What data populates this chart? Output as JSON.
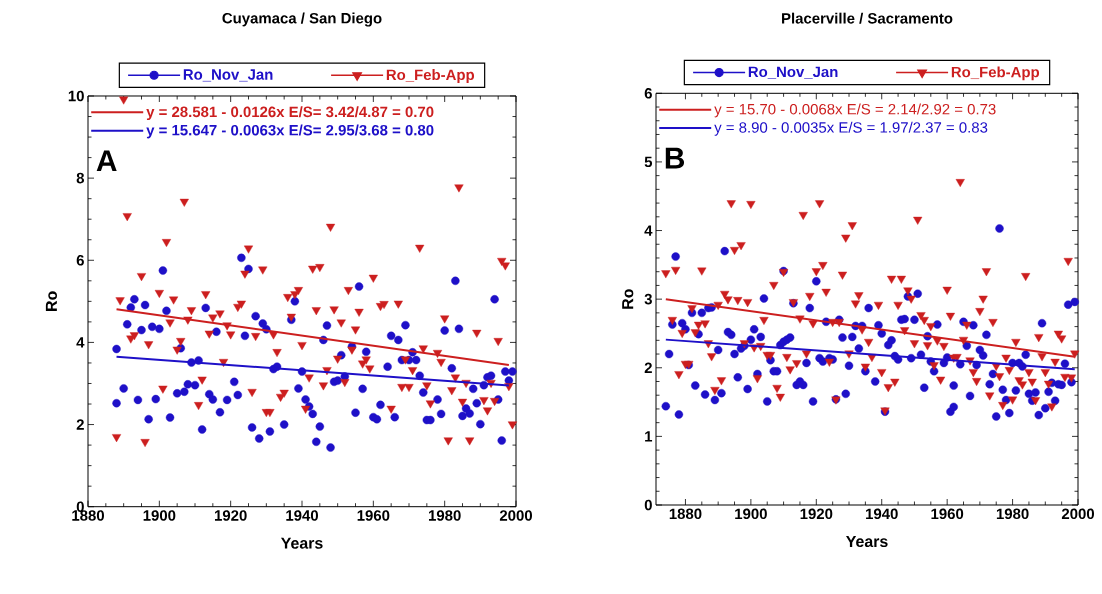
{
  "chart_data": [
    {
      "type": "scatter",
      "title": "Cuyamaca / San Diego",
      "xlabel": "Years",
      "ylabel": "Ro",
      "xlim": [
        1880,
        2000
      ],
      "ylim": [
        0,
        10
      ],
      "xticks": [
        1880,
        1900,
        1920,
        1940,
        1960,
        1980,
        2000
      ],
      "yticks": [
        0,
        2,
        4,
        6,
        8,
        10
      ],
      "legend": "top",
      "annotations": [
        "A"
      ],
      "series": [
        {
          "name": "Ro_Nov_Jan",
          "color": "#1e10c8",
          "marker": "circle",
          "x": [
            1888,
            1888,
            1890,
            1891,
            1892,
            1893,
            1894,
            1895,
            1896,
            1897,
            1898,
            1899,
            1900,
            1901,
            1902,
            1903,
            1905,
            1906,
            1907,
            1908,
            1909,
            1910,
            1911,
            1912,
            1913,
            1914,
            1915,
            1916,
            1917,
            1919,
            1921,
            1922,
            1923,
            1924,
            1925,
            1926,
            1927,
            1928,
            1929,
            1930,
            1931,
            1932,
            1933,
            1935,
            1937,
            1938,
            1939,
            1940,
            1941,
            1942,
            1943,
            1944,
            1945,
            1946,
            1947,
            1948,
            1949,
            1950,
            1951,
            1952,
            1954,
            1955,
            1956,
            1957,
            1958,
            1960,
            1961,
            1962,
            1964,
            1965,
            1966,
            1967,
            1968,
            1969,
            1970,
            1971,
            1972,
            1973,
            1974,
            1975,
            1976,
            1978,
            1979,
            1980,
            1982,
            1983,
            1984,
            1985,
            1986,
            1987,
            1988,
            1989,
            1990,
            1991,
            1992,
            1993,
            1994,
            1995,
            1996,
            1997,
            1998,
            1999
          ],
          "values": [
            3.84,
            2.52,
            2.88,
            4.44,
            4.85,
            5.05,
            2.6,
            4.3,
            4.91,
            2.13,
            4.38,
            2.62,
            4.33,
            5.75,
            4.77,
            2.17,
            2.76,
            3.86,
            2.8,
            2.98,
            3.51,
            2.96,
            3.56,
            1.88,
            4.84,
            2.74,
            2.61,
            4.26,
            2.3,
            2.6,
            3.04,
            2.72,
            6.06,
            4.16,
            5.79,
            1.93,
            4.64,
            1.66,
            4.46,
            4.32,
            1.83,
            3.35,
            3.41,
            2.0,
            4.55,
            5.0,
            2.88,
            3.29,
            2.61,
            2.44,
            2.26,
            1.58,
            1.95,
            4.06,
            4.41,
            1.44,
            3.04,
            3.07,
            3.69,
            3.17,
            3.9,
            2.29,
            5.36,
            2.87,
            3.77,
            2.18,
            2.13,
            2.48,
            3.41,
            4.16,
            2.18,
            4.06,
            3.57,
            4.42,
            3.57,
            3.76,
            3.57,
            3.19,
            2.78,
            2.11,
            2.11,
            2.61,
            2.26,
            4.29,
            3.37,
            5.5,
            4.33,
            2.21,
            2.39,
            2.27,
            2.87,
            2.52,
            2.01,
            2.96,
            3.15,
            3.19,
            5.05,
            2.61,
            1.61,
            3.29,
            3.07,
            3.29
          ]
        },
        {
          "name": "Ro_Feb-App",
          "color": "#cc1f1f",
          "marker": "triangle",
          "x": [
            1888,
            1889,
            1890,
            1891,
            1892,
            1893,
            1895,
            1896,
            1897,
            1900,
            1901,
            1902,
            1903,
            1904,
            1905,
            1906,
            1907,
            1908,
            1909,
            1911,
            1912,
            1913,
            1914,
            1915,
            1917,
            1918,
            1919,
            1920,
            1922,
            1923,
            1924,
            1925,
            1926,
            1927,
            1929,
            1930,
            1931,
            1932,
            1933,
            1934,
            1935,
            1936,
            1937,
            1938,
            1939,
            1940,
            1941,
            1942,
            1943,
            1944,
            1945,
            1946,
            1947,
            1948,
            1949,
            1950,
            1951,
            1952,
            1953,
            1954,
            1955,
            1956,
            1957,
            1958,
            1959,
            1960,
            1962,
            1963,
            1965,
            1967,
            1968,
            1969,
            1970,
            1971,
            1973,
            1974,
            1975,
            1976,
            1978,
            1979,
            1980,
            1981,
            1982,
            1983,
            1984,
            1985,
            1986,
            1987,
            1989,
            1991,
            1992,
            1993,
            1994,
            1995,
            1996,
            1997,
            1998,
            1999
          ],
          "values": [
            1.7,
            5.03,
            9.92,
            7.08,
            4.1,
            4.18,
            5.62,
            1.58,
            3.96,
            5.21,
            2.88,
            6.45,
            4.49,
            5.05,
            3.83,
            4.04,
            7.43,
            4.56,
            4.79,
            2.48,
            3.1,
            5.18,
            4.22,
            4.61,
            4.71,
            3.53,
            4.42,
            4.2,
            4.87,
            4.95,
            5.68,
            6.29,
            2.8,
            4.16,
            5.78,
            2.31,
            2.31,
            4.2,
            3.77,
            2.68,
            2.78,
            5.11,
            4.63,
            5.18,
            5.28,
            3.94,
            2.39,
            3.15,
            5.8,
            4.79,
            5.84,
            2.96,
            3.33,
            6.82,
            4.81,
            3.61,
            4.49,
            3.04,
            5.28,
            3.83,
            4.32,
            4.75,
            3.49,
            3.59,
            3.37,
            5.58,
            4.89,
            4.94,
            2.39,
            4.95,
            2.92,
            3.59,
            2.92,
            3.33,
            6.31,
            3.86,
            2.96,
            2.52,
            3.75,
            3.53,
            4.59,
            1.62,
            2.84,
            3.15,
            7.78,
            2.56,
            3.02,
            1.62,
            4.24,
            2.6,
            2.35,
            3.02,
            2.58,
            4.04,
            5.99,
            5.88,
            2.94,
            2.01
          ]
        },
        {
          "name": "y = 28.581 - 0.0126x   E/S= 3.42/4.87 = 0.70",
          "type": "line",
          "color": "#cc1f1f",
          "marker": "none",
          "x": [
            1888,
            1998
          ],
          "values": [
            4.81,
            3.45
          ]
        },
        {
          "name": "y = 15.647 - 0.0063x  E/S= 2.95/3.68 = 0.80",
          "type": "line",
          "color": "#1e10c8",
          "marker": "none",
          "x": [
            1888,
            1998
          ],
          "values": [
            3.65,
            2.95
          ]
        }
      ]
    },
    {
      "type": "scatter",
      "title": "Placerville /  Sacramento",
      "xlabel": "Years",
      "ylabel": "Ro",
      "xlim": [
        1871,
        2000
      ],
      "ylim": [
        0,
        6
      ],
      "xticks": [
        1880,
        1900,
        1920,
        1940,
        1960,
        1980,
        2000
      ],
      "yticks": [
        0,
        1,
        2,
        3,
        4,
        5,
        6
      ],
      "legend": "top",
      "annotations": [
        "B"
      ],
      "series": [
        {
          "name": "Ro_Nov_Jan",
          "color": "#1e10c8",
          "marker": "circle",
          "x": [
            1874,
            1875,
            1876,
            1877,
            1878,
            1879,
            1880,
            1881,
            1882,
            1883,
            1884,
            1885,
            1886,
            1887,
            1888,
            1889,
            1890,
            1891,
            1892,
            1893,
            1894,
            1895,
            1896,
            1897,
            1898,
            1899,
            1900,
            1901,
            1902,
            1903,
            1904,
            1905,
            1906,
            1907,
            1908,
            1909,
            1910,
            1910,
            1911,
            1912,
            1913,
            1914,
            1915,
            1916,
            1917,
            1918,
            1919,
            1920,
            1921,
            1922,
            1923,
            1924,
            1925,
            1926,
            1927,
            1928,
            1929,
            1930,
            1931,
            1932,
            1933,
            1934,
            1935,
            1936,
            1938,
            1939,
            1940,
            1941,
            1942,
            1943,
            1944,
            1945,
            1946,
            1947,
            1948,
            1949,
            1950,
            1951,
            1952,
            1953,
            1954,
            1955,
            1956,
            1957,
            1959,
            1960,
            1961,
            1962,
            1962,
            1964,
            1965,
            1966,
            1967,
            1968,
            1969,
            1970,
            1971,
            1972,
            1973,
            1974,
            1975,
            1976,
            1977,
            1978,
            1979,
            1980,
            1981,
            1982,
            1983,
            1984,
            1985,
            1986,
            1987,
            1988,
            1989,
            1990,
            1991,
            1992,
            1993,
            1994,
            1995,
            1996,
            1997,
            1998,
            1999
          ],
          "values": [
            1.44,
            2.2,
            2.63,
            3.62,
            1.32,
            2.65,
            2.56,
            2.04,
            2.8,
            1.74,
            2.49,
            2.8,
            1.61,
            2.87,
            2.88,
            1.53,
            2.26,
            1.63,
            3.7,
            2.52,
            2.48,
            2.2,
            1.86,
            2.28,
            2.32,
            1.69,
            2.41,
            2.56,
            1.91,
            2.45,
            3.01,
            1.51,
            2.11,
            1.95,
            1.95,
            2.33,
            2.38,
            3.41,
            2.41,
            2.44,
            2.94,
            1.75,
            1.8,
            1.75,
            2.07,
            2.87,
            1.51,
            3.26,
            2.14,
            2.09,
            2.67,
            2.14,
            2.12,
            1.54,
            2.7,
            2.44,
            1.62,
            2.03,
            2.45,
            2.61,
            2.28,
            2.61,
            1.95,
            2.87,
            1.8,
            2.62,
            2.5,
            1.36,
            2.33,
            2.4,
            2.17,
            2.12,
            2.7,
            2.71,
            3.04,
            2.14,
            2.7,
            3.08,
            2.19,
            1.71,
            2.46,
            2.09,
            1.95,
            2.63,
            2.07,
            2.15,
            1.36,
            1.74,
            1.43,
            2.05,
            2.67,
            2.32,
            1.59,
            2.62,
            2.04,
            2.26,
            2.18,
            2.48,
            1.76,
            1.91,
            1.29,
            4.03,
            1.68,
            1.53,
            1.34,
            2.07,
            1.67,
            2.07,
            2.02,
            2.19,
            1.62,
            1.52,
            1.64,
            1.31,
            2.65,
            1.41,
            1.65,
            1.78,
            1.52,
            1.76,
            1.75,
            2.06,
            2.92,
            1.79,
            2.96
          ]
        },
        {
          "name": "Ro_Feb-App",
          "color": "#cc1f1f",
          "marker": "triangle",
          "x": [
            1874,
            1876,
            1877,
            1878,
            1879,
            1880,
            1881,
            1882,
            1883,
            1884,
            1885,
            1886,
            1887,
            1888,
            1889,
            1890,
            1891,
            1892,
            1893,
            1894,
            1895,
            1896,
            1897,
            1898,
            1899,
            1900,
            1901,
            1902,
            1903,
            1904,
            1905,
            1906,
            1907,
            1908,
            1909,
            1910,
            1911,
            1912,
            1913,
            1914,
            1915,
            1916,
            1917,
            1918,
            1919,
            1920,
            1921,
            1922,
            1923,
            1924,
            1925,
            1926,
            1927,
            1928,
            1929,
            1930,
            1931,
            1932,
            1933,
            1934,
            1935,
            1936,
            1937,
            1939,
            1940,
            1941,
            1942,
            1943,
            1944,
            1945,
            1946,
            1947,
            1948,
            1949,
            1950,
            1951,
            1952,
            1953,
            1954,
            1955,
            1956,
            1957,
            1958,
            1959,
            1960,
            1961,
            1962,
            1963,
            1964,
            1965,
            1966,
            1967,
            1968,
            1969,
            1970,
            1971,
            1972,
            1973,
            1974,
            1975,
            1976,
            1977,
            1978,
            1979,
            1980,
            1981,
            1982,
            1983,
            1984,
            1985,
            1986,
            1987,
            1988,
            1989,
            1990,
            1991,
            1992,
            1993,
            1994,
            1995,
            1996,
            1997,
            1998,
            1999
          ],
          "values": [
            3.38,
            2.7,
            3.43,
            1.91,
            2.51,
            2.06,
            2.06,
            2.87,
            2.52,
            2.63,
            3.42,
            2.65,
            2.36,
            2.17,
            1.68,
            2.92,
            1.82,
            3.08,
            3.0,
            4.4,
            3.72,
            2.99,
            3.79,
            2.36,
            2.96,
            4.39,
            2.3,
            1.85,
            2.32,
            2.7,
            2.19,
            2.19,
            3.21,
            1.71,
            1.58,
            3.4,
            2.16,
            1.98,
            2.96,
            2.07,
            2.72,
            4.23,
            2.21,
            3.05,
            2.65,
            3.41,
            4.4,
            3.5,
            3.11,
            2.09,
            2.67,
            1.54,
            2.67,
            3.36,
            3.9,
            2.21,
            4.08,
            2.94,
            3.06,
            2.56,
            2.02,
            2.38,
            2.16,
            2.92,
            1.94,
            1.38,
            1.72,
            3.3,
            1.8,
            2.92,
            3.3,
            2.55,
            3.13,
            3.01,
            2.36,
            4.16,
            2.77,
            2.7,
            2.33,
            2.61,
            2.04,
            2.4,
            1.83,
            2.32,
            3.14,
            2.76,
            2.15,
            2.16,
            4.71,
            2.41,
            2.63,
            2.11,
            1.94,
            1.81,
            2.83,
            3.01,
            3.41,
            1.6,
            2.67,
            2.03,
            1.88,
            1.46,
            2.15,
            1.97,
            1.54,
            2.38,
            1.82,
            1.76,
            3.34,
            1.94,
            1.8,
            1.53,
            2.45,
            2.17,
            1.94,
            1.77,
            1.44,
            2.09,
            2.5,
            2.43,
            1.87,
            3.56,
            1.86,
            2.21
          ]
        },
        {
          "name": "y = 15.70 - 0.0068x   E/S = 2.14/2.92 = 0.73",
          "type": "line",
          "color": "#cc1f1f",
          "marker": "none",
          "x": [
            1874,
            1999
          ],
          "values": [
            3.0,
            2.16
          ]
        },
        {
          "name": "y = 8.90 - 0.0035x   E/S = 1.97/2.37 = 0.83",
          "type": "line",
          "color": "#1e10c8",
          "marker": "none",
          "x": [
            1874,
            1999
          ],
          "values": [
            2.41,
            1.98
          ]
        }
      ]
    }
  ]
}
